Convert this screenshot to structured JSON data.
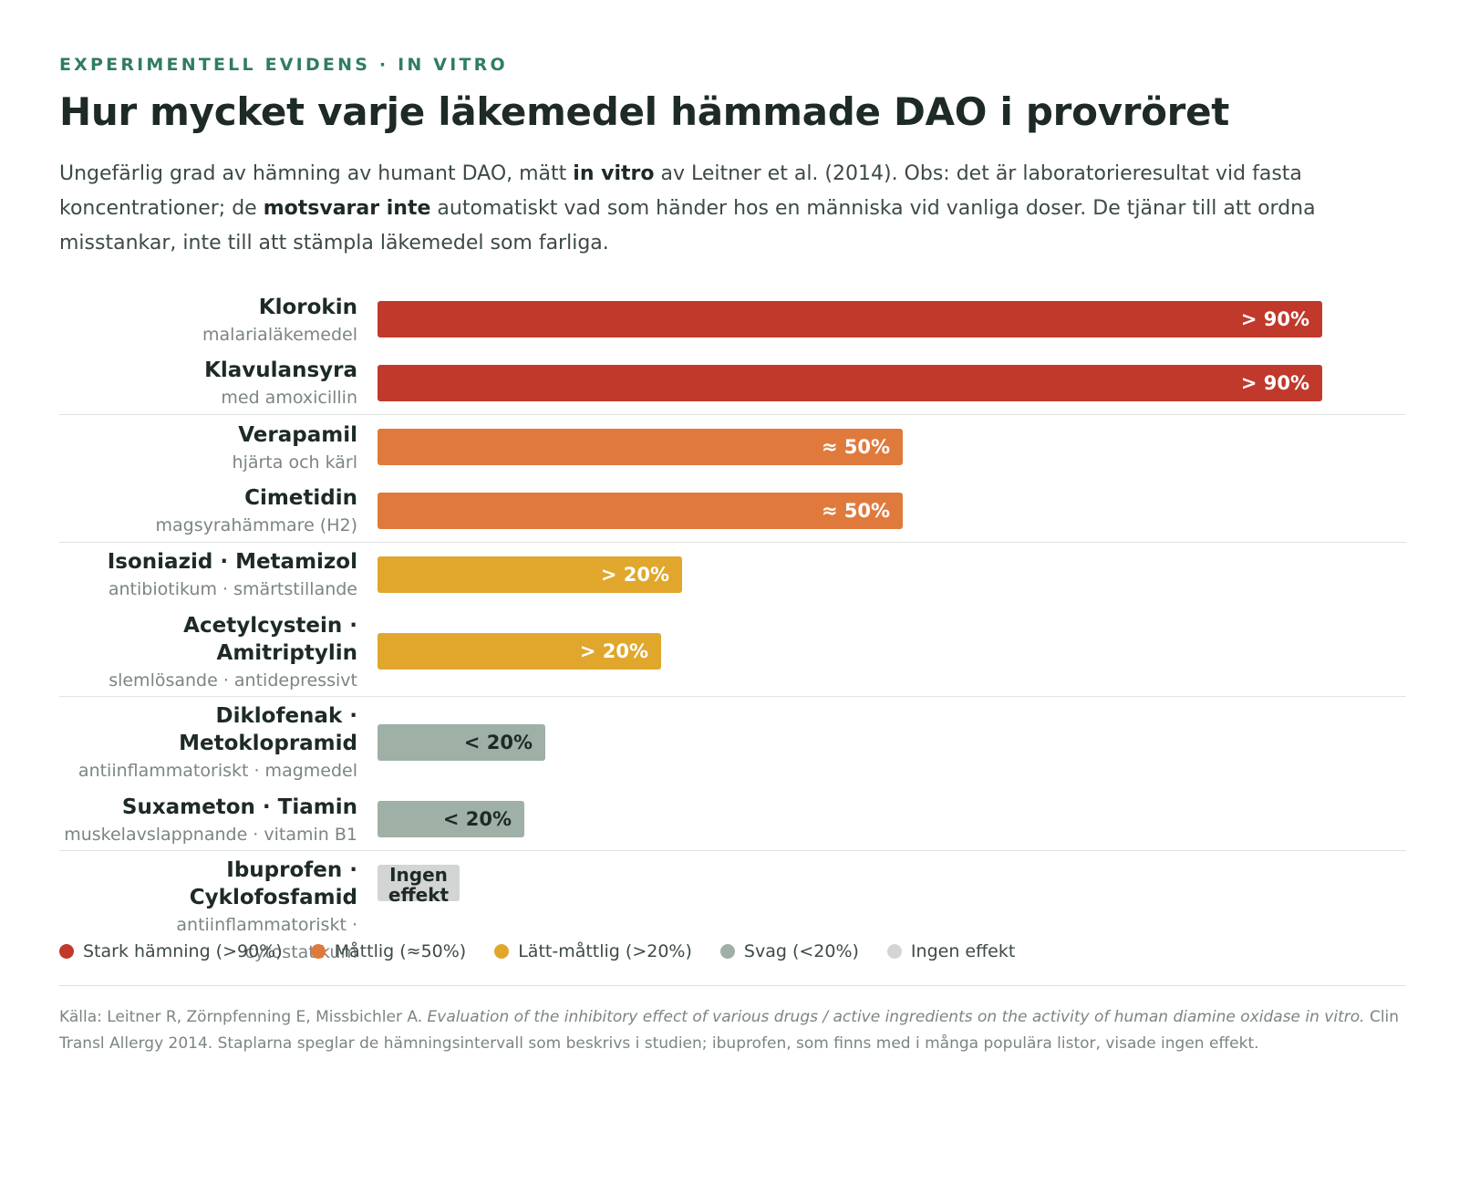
{
  "kicker": "EXPERIMENTELL EVIDENS · IN VITRO",
  "title": "Hur mycket varje läkemedel hämmade DAO i provröret",
  "intro": {
    "p1": "Ungefärlig grad av hämning av humant DAO, mätt ",
    "b1": "in vitro",
    "p2": " av Leitner et al. (2014). Obs: det är laboratorieresultat vid fasta koncentrationer; de ",
    "b2": "motsvarar inte",
    "p3": " automatiskt vad som händer hos en människa vid vanliga doser. De tjänar till att ordna misstankar, inte till att stämpla läkemedel som farliga."
  },
  "chart_data": {
    "type": "bar",
    "orientation": "horizontal",
    "unit": "%",
    "xlim": [
      0,
      100
    ],
    "bars": [
      {
        "name": "Klorokin",
        "sub": "malarialäkemedel",
        "value": 90,
        "label": "> 90%",
        "category": "strong"
      },
      {
        "name": "Klavulansyra",
        "sub": "med amoxicillin",
        "value": 90,
        "label": "> 90%",
        "category": "strong"
      },
      {
        "name": "Verapamil",
        "sub": "hjärta och kärl",
        "value": 50,
        "label": "≈ 50%",
        "category": "moderate"
      },
      {
        "name": "Cimetidin",
        "sub": "magsyrahämmare (H2)",
        "value": 50,
        "label": "≈ 50%",
        "category": "moderate"
      },
      {
        "name": "Isoniazid · Metamizol",
        "sub": "antibiotikum · smärtstillande",
        "value": 29,
        "label": "> 20%",
        "category": "mild"
      },
      {
        "name": "Acetylcystein · Amitriptylin",
        "sub": "slemlösande · antidepressivt",
        "value": 27,
        "label": "> 20%",
        "category": "mild"
      },
      {
        "name": "Diklofenak · Metoklopramid",
        "sub": "antiinflammatoriskt · magmedel",
        "value": 16,
        "label": "< 20%",
        "category": "weak"
      },
      {
        "name": "Suxameton · Tiamin",
        "sub": "muskelavslappnande · vitamin B1",
        "value": 14,
        "label": "< 20%",
        "category": "weak"
      },
      {
        "name": "Ibuprofen · Cyklofosfamid",
        "sub": "antiinflammatoriskt · cytostatikum",
        "value": 0,
        "label": "Ingen effekt",
        "category": "none"
      }
    ],
    "colors": {
      "strong": "#c0392b",
      "moderate": "#e07a3c",
      "mild": "#e0a72c",
      "weak": "#9fb0a6",
      "none": "#d3d5d4"
    },
    "legend": [
      {
        "label": "Stark hämning (>90%)",
        "category": "strong"
      },
      {
        "label": "Måttlig (≈50%)",
        "category": "moderate"
      },
      {
        "label": "Lätt-måttlig (>20%)",
        "category": "mild"
      },
      {
        "label": "Svag (<20%)",
        "category": "weak"
      },
      {
        "label": "Ingen effekt",
        "category": "none"
      }
    ],
    "legend_position": "bottom"
  },
  "source": {
    "p1": "Källa: Leitner R, Zörnpfenning E, Missbichler A. ",
    "i1": "Evaluation of the inhibitory effect of various drugs / active ingredients on the activity of human diamine oxidase in vitro.",
    "p2": " Clin Transl Allergy 2014. Staplarna speglar de hämningsintervall som beskrivs i studien; ibuprofen, som finns med i många populära listor, visade ingen effekt."
  }
}
